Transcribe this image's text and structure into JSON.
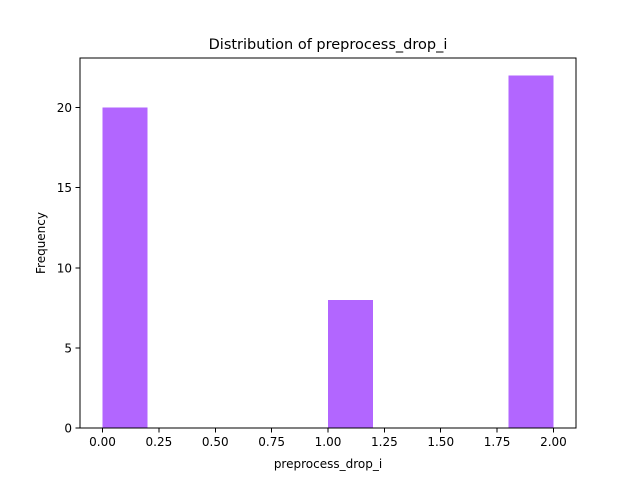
{
  "chart_data": {
    "type": "bar",
    "title": "Distribution of  preprocess_drop_i",
    "xlabel": "preprocess_drop_i",
    "ylabel": "Frequency",
    "bins": [
      {
        "x0": 0.0,
        "x1": 0.2,
        "count": 20
      },
      {
        "x0": 0.2,
        "x1": 0.4,
        "count": 0
      },
      {
        "x0": 0.4,
        "x1": 0.6,
        "count": 0
      },
      {
        "x0": 0.6,
        "x1": 0.8,
        "count": 0
      },
      {
        "x0": 0.8,
        "x1": 1.0,
        "count": 0
      },
      {
        "x0": 1.0,
        "x1": 1.2,
        "count": 8
      },
      {
        "x0": 1.2,
        "x1": 1.4,
        "count": 0
      },
      {
        "x0": 1.4,
        "x1": 1.6,
        "count": 0
      },
      {
        "x0": 1.6,
        "x1": 1.8,
        "count": 0
      },
      {
        "x0": 1.8,
        "x1": 2.0,
        "count": 22
      }
    ],
    "xlim": [
      -0.1,
      2.1
    ],
    "ylim": [
      0,
      23.1
    ],
    "xticks": [
      0.0,
      0.25,
      0.5,
      0.75,
      1.0,
      1.25,
      1.5,
      1.75,
      2.0
    ],
    "xtick_labels": [
      "0.00",
      "0.25",
      "0.50",
      "0.75",
      "1.00",
      "1.25",
      "1.50",
      "1.75",
      "2.00"
    ],
    "yticks": [
      0,
      5,
      10,
      15,
      20
    ],
    "ytick_labels": [
      "0",
      "5",
      "10",
      "15",
      "20"
    ],
    "bar_color": "#b266ff",
    "grid": false,
    "legend": "none"
  }
}
